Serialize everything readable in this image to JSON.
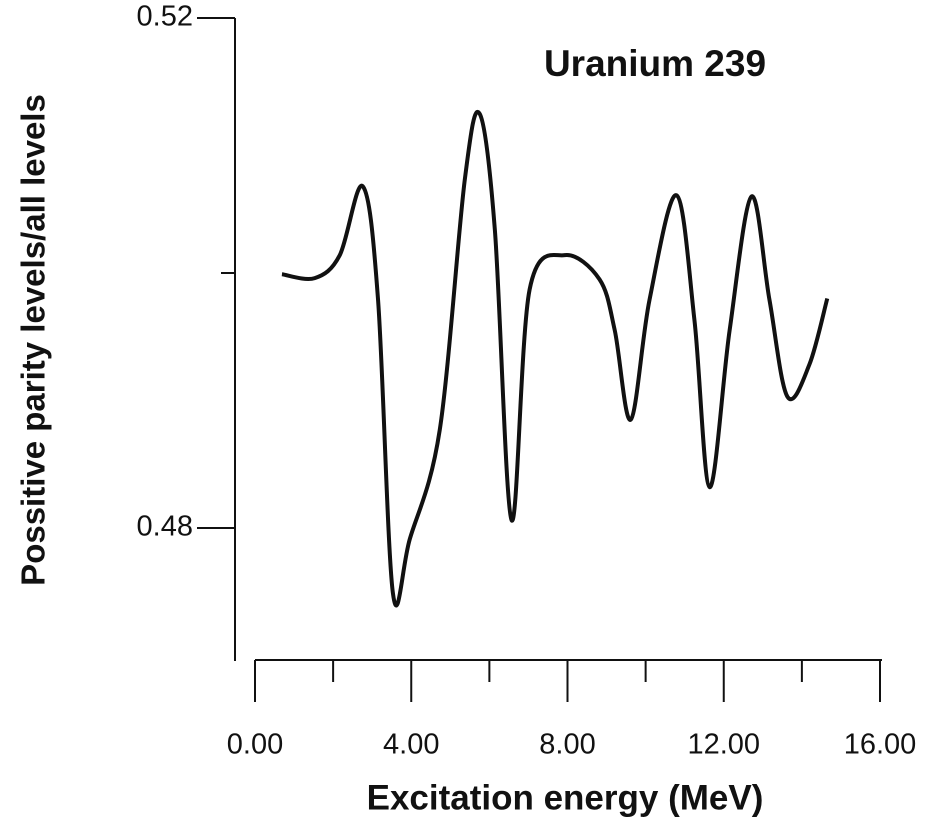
{
  "chart_data": {
    "type": "line",
    "title": "Uranium 239",
    "x_label": "Excitation energy (MeV)",
    "y_label": "Possitive parity levels/all levels",
    "x": [
      0.69,
      1.53,
      2.17,
      2.76,
      3.15,
      3.53,
      3.96,
      4.73,
      5.37,
      5.75,
      6.14,
      6.57,
      7.03,
      7.93,
      8.82,
      9.21,
      9.62,
      10.1,
      10.79,
      11.25,
      11.64,
      12.15,
      12.71,
      13.17,
      13.63,
      14.19,
      14.65
    ],
    "series": [
      {
        "color": "#111111",
        "values": [
          0.4999,
          0.4996,
          0.5014,
          0.5068,
          0.4979,
          0.4749,
          0.4791,
          0.4877,
          0.5073,
          0.5125,
          0.5034,
          0.4806,
          0.4987,
          0.5014,
          0.4995,
          0.4955,
          0.4885,
          0.4979,
          0.5061,
          0.4963,
          0.4832,
          0.4955,
          0.506,
          0.4979,
          0.4903,
          0.4928,
          0.498
        ]
      }
    ],
    "xlim": [
      0,
      16
    ],
    "xticks": [
      {
        "value": 0,
        "label": "0.00"
      },
      {
        "value": 4,
        "label": "4.00"
      },
      {
        "value": 8,
        "label": "8.00"
      },
      {
        "value": 12,
        "label": "12.00"
      },
      {
        "value": 16,
        "label": "16.00"
      }
    ],
    "xticks_minor": [
      2,
      6,
      10,
      14
    ],
    "ylim": [
      0.4696,
      0.52
    ],
    "yticks": [
      0.48,
      0.52
    ],
    "yticks_minor": [
      0.5
    ],
    "grid": false
  }
}
